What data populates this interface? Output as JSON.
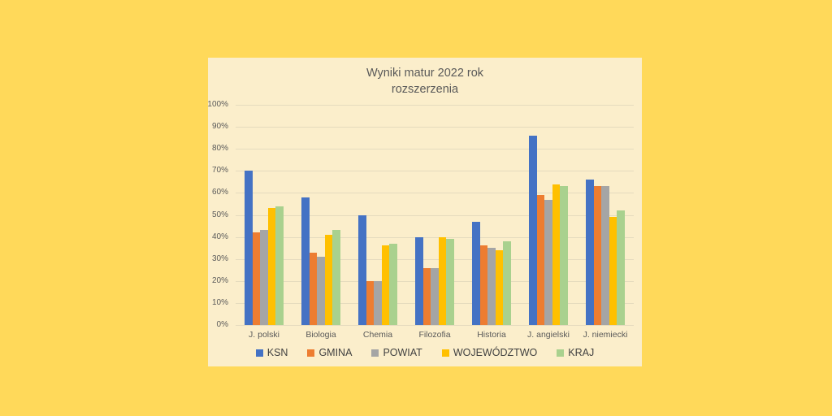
{
  "title": {
    "line1": "Wyniki matur 2022 rok",
    "line2": "rozszerzenia"
  },
  "colors": {
    "page_background": "#FFD95A",
    "panel_background": "#FBEECB",
    "gridline": "#E5DBBE",
    "axis_text": "#595959",
    "title_text": "#595959",
    "legend_text": "#404040"
  },
  "chart_data": {
    "type": "bar",
    "title": "Wyniki matur 2022 rok rozszerzenia",
    "xlabel": "",
    "ylabel": "",
    "ylim": [
      0,
      100
    ],
    "grid": true,
    "legend_position": "bottom",
    "y_ticks": [
      "0%",
      "10%",
      "20%",
      "30%",
      "40%",
      "50%",
      "60%",
      "70%",
      "80%",
      "90%",
      "100%"
    ],
    "categories": [
      "J. polski",
      "Biologia",
      "Chemia",
      "Filozofia",
      "Historia",
      "J. angielski",
      "J. niemiecki"
    ],
    "series": [
      {
        "name": "KSN",
        "color": "#4472C4",
        "values": [
          70,
          58,
          50,
          40,
          47,
          86,
          66
        ]
      },
      {
        "name": "GMINA",
        "color": "#ED7D31",
        "values": [
          42,
          33,
          20,
          26,
          36,
          59,
          63
        ]
      },
      {
        "name": "POWIAT",
        "color": "#A5A5A5",
        "values": [
          43,
          31,
          20,
          26,
          35,
          57,
          63
        ]
      },
      {
        "name": "WOJEWÓDZTWO",
        "color": "#FFC000",
        "values": [
          53,
          41,
          36,
          40,
          34,
          64,
          49
        ]
      },
      {
        "name": "KRAJ",
        "color": "#A9D18E",
        "values": [
          54,
          43,
          37,
          39,
          38,
          63,
          52
        ]
      }
    ]
  }
}
